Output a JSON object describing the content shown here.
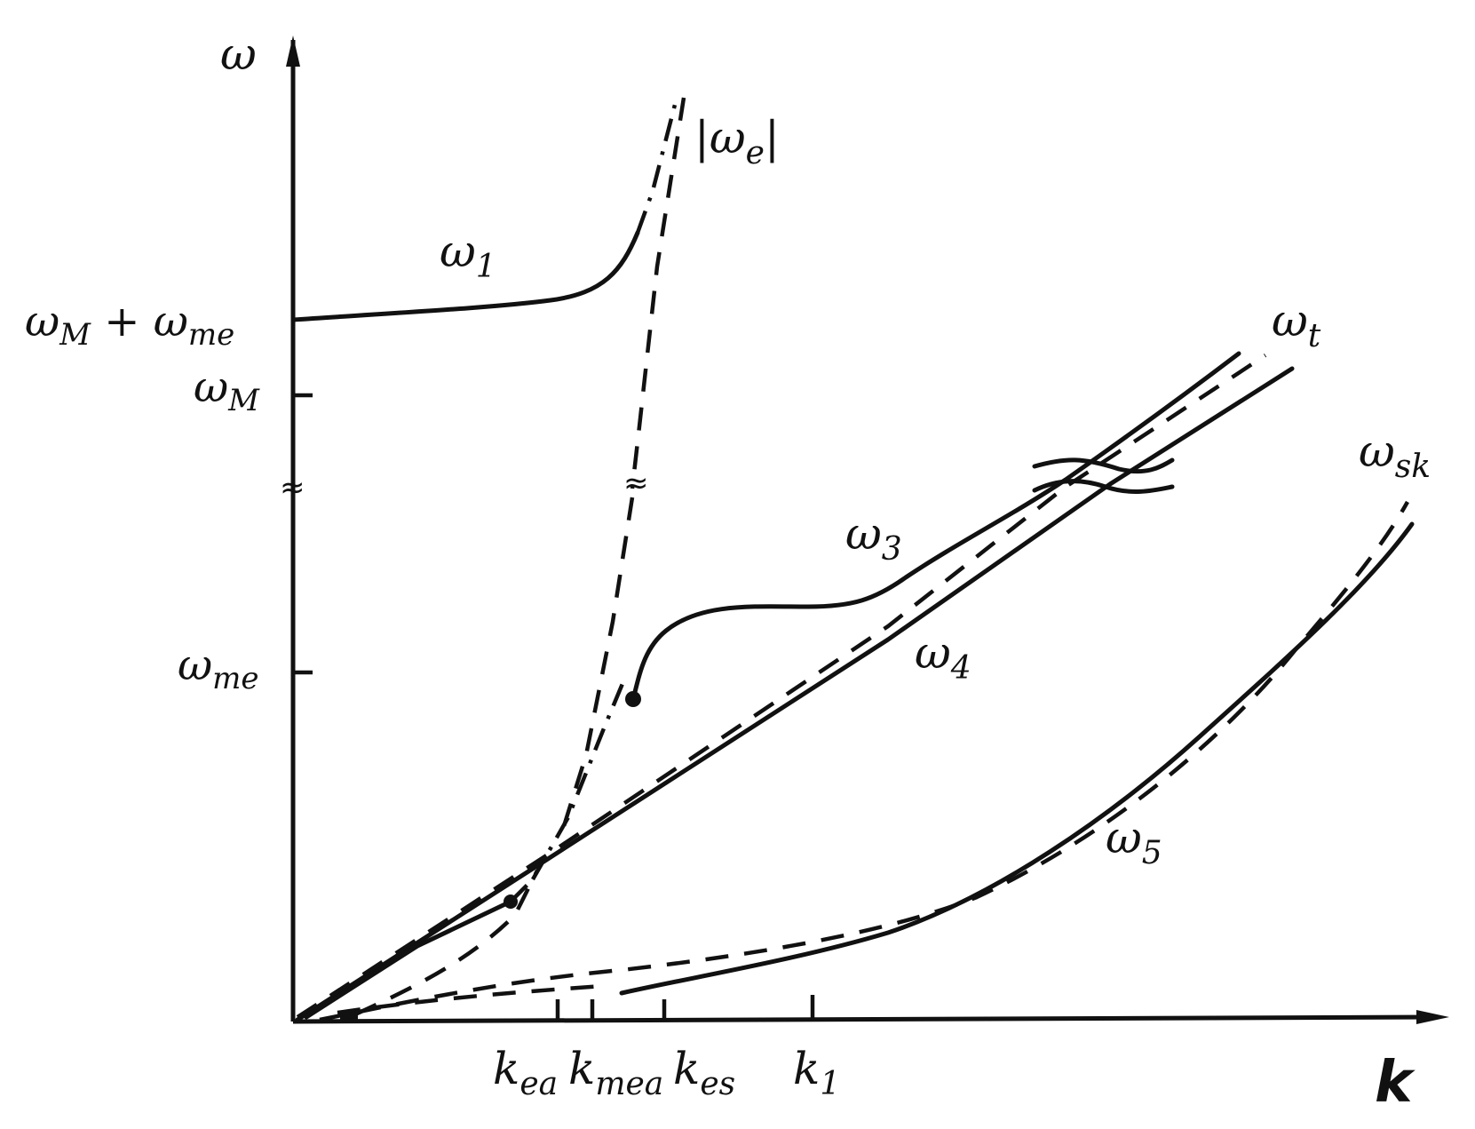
{
  "axes": {
    "y_label": "ω",
    "x_label": "k"
  },
  "y_ticks": {
    "wM_plus_wme": {
      "main": "ω",
      "sub1": "M",
      "plus": " + ω",
      "sub2": "me"
    },
    "wM": {
      "main": "ω",
      "sub": "M"
    },
    "wme": {
      "main": "ω",
      "sub": "me"
    }
  },
  "x_ticks": {
    "kea": {
      "main": "k",
      "sub": "ea"
    },
    "kmea": {
      "main": "k",
      "sub": "mea"
    },
    "kes": {
      "main": "k",
      "sub": "es"
    },
    "k1": {
      "main": "k",
      "sub": "1"
    }
  },
  "curve_labels": {
    "w1": {
      "main": "ω",
      "sub": "1"
    },
    "we": {
      "pre": "|ω",
      "sub": "e",
      "post": "|"
    },
    "wt": {
      "main": "ω",
      "sub": "t"
    },
    "w3": {
      "main": "ω",
      "sub": "3"
    },
    "w4": {
      "main": "ω",
      "sub": "4"
    },
    "wsk": {
      "main": "ω",
      "sub": "sk"
    },
    "w5": {
      "main": "ω",
      "sub": "5"
    }
  },
  "break_mark": "≈"
}
